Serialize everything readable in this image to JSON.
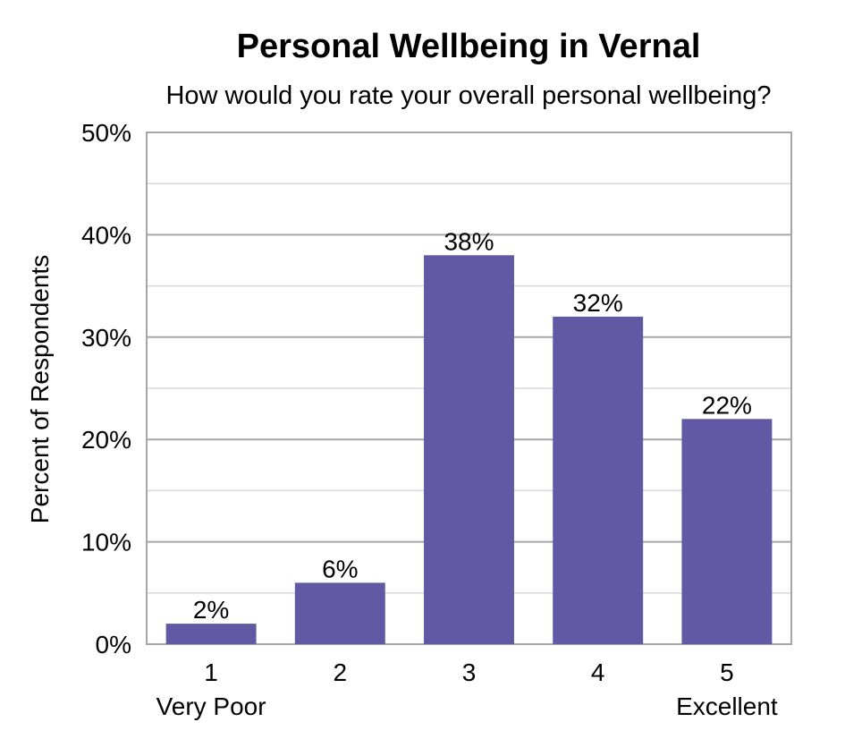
{
  "chart_data": {
    "type": "bar",
    "title": "Personal Wellbeing in Vernal",
    "subtitle": "How would you rate your overall personal wellbeing?",
    "xlabel": "",
    "ylabel": "Percent of Respondents",
    "categories": [
      "1",
      "2",
      "3",
      "4",
      "5"
    ],
    "category_sublabels": [
      "Very Poor",
      "",
      "",
      "",
      "Excellent"
    ],
    "values": [
      2,
      6,
      38,
      32,
      22
    ],
    "value_labels": [
      "2%",
      "6%",
      "38%",
      "32%",
      "22%"
    ],
    "ylim": [
      0,
      50
    ],
    "yticks": [
      0,
      10,
      20,
      30,
      40,
      50
    ],
    "ytick_labels": [
      "0%",
      "10%",
      "20%",
      "30%",
      "40%",
      "50%"
    ],
    "grid": true,
    "bar_color": "#6159A3",
    "gridline_color": "#A6A6A6",
    "minor_gridline_color": "#D9D9D9"
  }
}
